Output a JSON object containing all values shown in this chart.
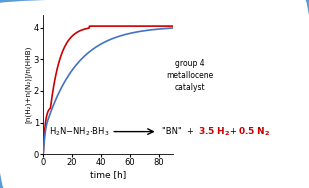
{
  "xlabel": "time [h]",
  "ylabel": "[n(H₂)+n(N₂)]/n(HHB)",
  "xlim": [
    0,
    90
  ],
  "ylim": [
    0,
    4.4
  ],
  "yticks": [
    0,
    1,
    2,
    3,
    4
  ],
  "xticks": [
    0,
    20,
    40,
    60,
    80
  ],
  "bg_color": "#ffffff",
  "border_color": "#5b9bd5",
  "red_line_color": "#cc0000",
  "blue_line_color": "#4472c4"
}
